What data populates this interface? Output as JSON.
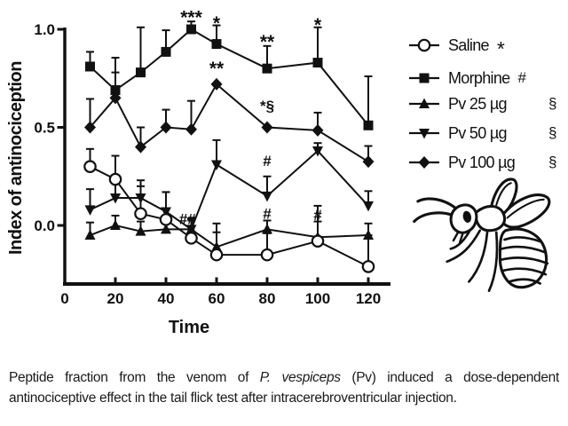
{
  "figure": {
    "illustration": "wasp-line-drawing",
    "caption": {
      "line1_pre": "Peptide fraction from the venom of ",
      "line1_italic": "P. vespiceps",
      "line1_post": " (Pv) induced a dose-dependent",
      "line2": "antinociceptive effect in the tail flick test after intracerebroventricular injection."
    }
  },
  "chart_data": {
    "type": "line",
    "title": "",
    "xlabel": "Time",
    "ylabel": "Index of antinociception",
    "x": [
      10,
      20,
      30,
      40,
      50,
      60,
      80,
      100,
      120
    ],
    "x_ticks": [
      0,
      20,
      40,
      60,
      80,
      100,
      120
    ],
    "y_ticks": [
      {
        "label": "1.0",
        "value": 1.0
      },
      {
        "label": "0.5",
        "value": 0.5
      },
      {
        "label": "0.0",
        "value": 0.0
      }
    ],
    "xlim": [
      0,
      129
    ],
    "ylim": [
      -0.3,
      1.1
    ],
    "grid": false,
    "legend_position": "right",
    "colors": {
      "ink": "#111111",
      "background": "#ffffff"
    },
    "series": [
      {
        "name": "Saline",
        "label": "Saline",
        "sig": "*",
        "marker": "circle-open",
        "values": [
          0.3,
          0.235,
          0.06,
          0.03,
          -0.065,
          -0.15,
          -0.15,
          -0.08,
          -0.21
        ],
        "errors_up": [
          0.09,
          0.12,
          0.14,
          0.14,
          0.1,
          0.115,
          0.11,
          0.1,
          0.16
        ]
      },
      {
        "name": "Morphine",
        "label": "Morphine",
        "sig": "#",
        "marker": "square",
        "values": [
          0.81,
          0.69,
          0.78,
          0.885,
          1.0,
          0.925,
          0.8,
          0.83,
          0.51
        ],
        "errors_up": [
          0.075,
          0.165,
          0.23,
          0.11,
          0.04,
          0.095,
          0.115,
          0.18,
          0.25
        ]
      },
      {
        "name": "Pv 25 µg",
        "label": "Pv 25 µg",
        "sig": "§",
        "marker": "triangle-up",
        "values": [
          -0.05,
          0.0,
          -0.03,
          -0.02,
          -0.02,
          -0.11,
          -0.02,
          -0.06,
          -0.05
        ],
        "errors_up": [
          0.065,
          0.05,
          0.05,
          0.06,
          0.05,
          0.12,
          0.045,
          0.16,
          0.06
        ]
      },
      {
        "name": "Pv 50 µg",
        "label": "Pv 50 µg",
        "sig": "§",
        "marker": "triangle-down",
        "values": [
          0.08,
          0.14,
          0.14,
          0.07,
          -0.02,
          0.31,
          0.15,
          0.38,
          0.1
        ],
        "errors_up": [
          0.105,
          0.08,
          0.09,
          0.1,
          0,
          0.125,
          0.1,
          0.04,
          0.075
        ]
      },
      {
        "name": "Pv 100 µg",
        "label": "Pv 100 µg",
        "sig": "§",
        "marker": "diamond",
        "values": [
          0.5,
          0.65,
          0.4,
          0.5,
          0.49,
          0.72,
          0.5,
          0.485,
          0.325
        ],
        "errors_up": [
          0.145,
          0.13,
          0.1,
          0.09,
          0.145,
          0,
          0,
          0.09,
          0.08
        ]
      }
    ],
    "annotations": [
      {
        "text": "***",
        "t": 50,
        "v": 1.08,
        "kind": "star"
      },
      {
        "text": "*",
        "t": 60,
        "v": 1.05,
        "kind": "star"
      },
      {
        "text": "**",
        "t": 80,
        "v": 0.955,
        "kind": "star"
      },
      {
        "text": "*",
        "t": 100,
        "v": 1.04,
        "kind": "star"
      },
      {
        "text": "**",
        "t": 60,
        "v": 0.82,
        "kind": "star"
      },
      {
        "text": "*§",
        "t": 80,
        "v": 0.62,
        "kind": "mixed"
      },
      {
        "text": "#",
        "t": 80,
        "v": 0.33,
        "kind": "hash"
      },
      {
        "text": "#",
        "t": 80,
        "v": 0.06,
        "kind": "hash"
      },
      {
        "text": "##",
        "t": 48.5,
        "v": 0.035,
        "kind": "hash"
      },
      {
        "text": "#",
        "t": 100,
        "v": 0.055,
        "kind": "hash"
      }
    ]
  }
}
